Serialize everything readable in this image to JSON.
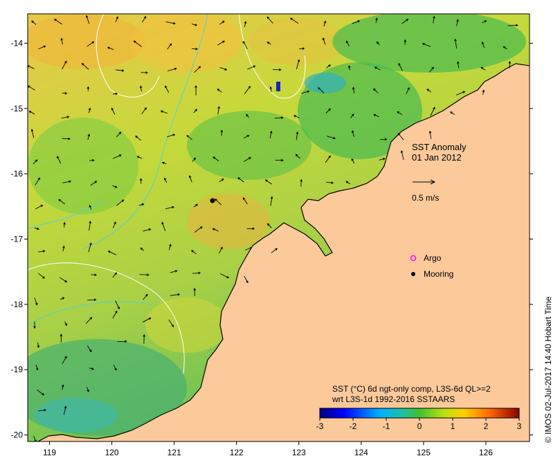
{
  "map": {
    "title_line1": "SST Anomaly",
    "title_line2": "01 Jan 2012",
    "scale_label": "0.5 m/s",
    "legend": {
      "argo": "Argo",
      "mooring": "Mooring"
    },
    "product_line1": "SST (°C) 6d ngt-only comp, L3S-6d QL>=2",
    "product_line2": "wrt L3S-1d 1992-2016 SSTAARS",
    "credit": "© IMOS 02-Jul-2017 14:40 Hobart Time",
    "x_ticks": [
      "119",
      "120",
      "121",
      "122",
      "123",
      "124",
      "125",
      "126"
    ],
    "y_ticks": [
      "-14",
      "-15",
      "-16",
      "-17",
      "-18",
      "-19",
      "-20"
    ],
    "colorbar_ticks": [
      "-3",
      "-2",
      "-1",
      "0",
      "1",
      "2",
      "3"
    ],
    "colors": {
      "land": "#fbc99a",
      "argo": "#ff00ff",
      "mooring": "#000000",
      "contour": "#ffffff",
      "isobath": "#4fd4d4"
    }
  },
  "chart_data": {
    "type": "heatmap",
    "title": "SST Anomaly 01 Jan 2012",
    "x_axis": {
      "unit": "longitude",
      "range": [
        118.65,
        126.7
      ],
      "ticks": [
        119,
        120,
        121,
        122,
        123,
        124,
        125,
        126
      ]
    },
    "y_axis": {
      "unit": "latitude",
      "range": [
        -20.1,
        -13.55
      ],
      "ticks": [
        -14,
        -15,
        -16,
        -17,
        -18,
        -19,
        -20
      ]
    },
    "colorbar": {
      "range": [
        -3,
        3
      ],
      "ticks": [
        -3,
        -2,
        -1,
        0,
        1,
        2,
        3
      ],
      "units": "°C"
    },
    "mooring": {
      "lon": 121.6,
      "lat": -16.4
    },
    "current_scale_ms": 0.5,
    "grid": false
  }
}
